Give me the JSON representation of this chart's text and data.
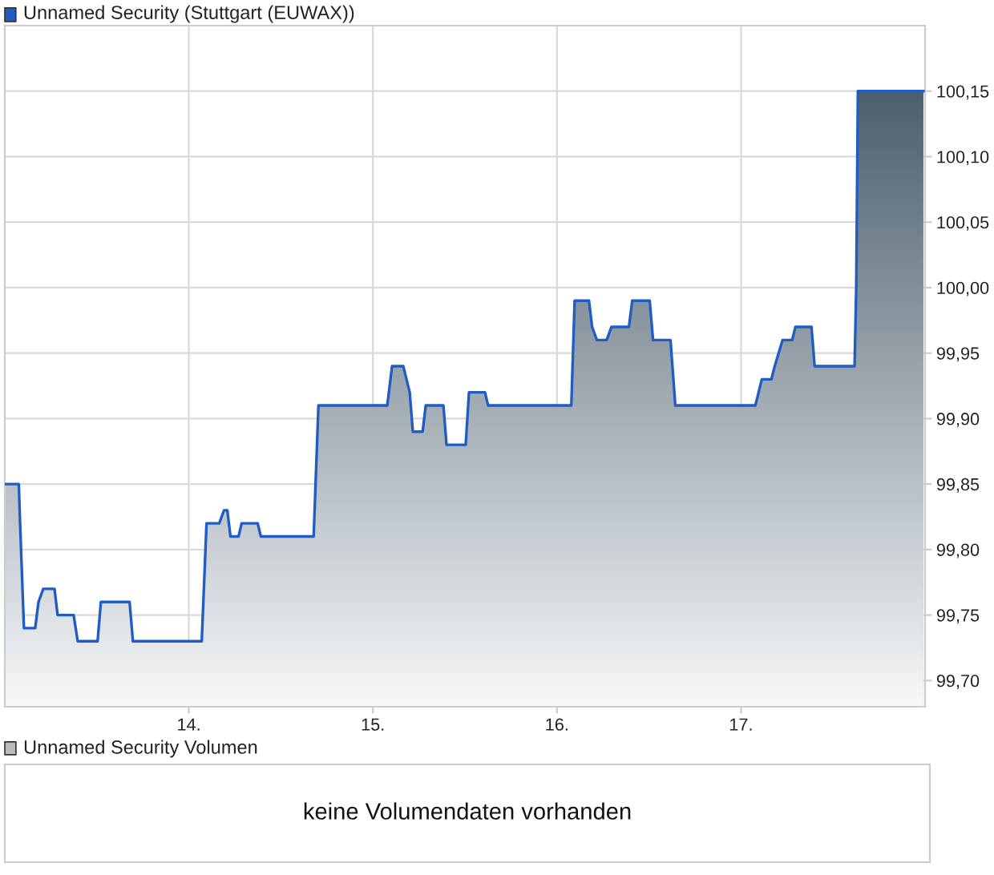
{
  "chart_data": [
    {
      "type": "area",
      "legend": "top left",
      "grid": true,
      "x": [
        13.0,
        13.076,
        13.083,
        13.104,
        13.165,
        13.183,
        13.209,
        13.27,
        13.287,
        13.374,
        13.396,
        13.504,
        13.522,
        13.678,
        13.696,
        14.07,
        14.096,
        14.165,
        14.191,
        14.209,
        14.226,
        14.27,
        14.287,
        14.374,
        14.391,
        14.678,
        14.704,
        15.078,
        15.104,
        15.165,
        15.2,
        15.217,
        15.27,
        15.287,
        15.383,
        15.4,
        15.504,
        15.522,
        15.609,
        15.626,
        16.078,
        16.096,
        16.174,
        16.191,
        16.217,
        16.27,
        16.296,
        16.391,
        16.409,
        16.504,
        16.522,
        16.617,
        16.643,
        17.078,
        17.113,
        17.165,
        17.183,
        17.226,
        17.278,
        17.296,
        17.383,
        17.4,
        17.617,
        17.626,
        17.635,
        17.991
      ],
      "series": [
        {
          "name": "Unnamed Security (Stuttgart (EUWAX))",
          "color": "#1f5cc4",
          "values": [
            99.85,
            99.85,
            99.82,
            99.74,
            99.74,
            99.76,
            99.77,
            99.77,
            99.75,
            99.75,
            99.73,
            99.73,
            99.76,
            99.76,
            99.73,
            99.73,
            99.82,
            99.82,
            99.83,
            99.83,
            99.81,
            99.81,
            99.82,
            99.82,
            99.81,
            99.81,
            99.91,
            99.91,
            99.94,
            99.94,
            99.92,
            99.89,
            99.89,
            99.91,
            99.91,
            99.88,
            99.88,
            99.92,
            99.92,
            99.91,
            99.91,
            99.99,
            99.99,
            99.97,
            99.96,
            99.96,
            99.97,
            99.97,
            99.99,
            99.99,
            99.96,
            99.96,
            99.91,
            99.91,
            99.93,
            99.93,
            99.94,
            99.96,
            99.96,
            99.97,
            99.97,
            99.94,
            99.94,
            100.0,
            100.15,
            100.15
          ]
        }
      ],
      "xlim": [
        13.0,
        18.0
      ],
      "xticks": [
        {
          "value": 14,
          "label": "14."
        },
        {
          "value": 15,
          "label": "15."
        },
        {
          "value": 16,
          "label": "16."
        },
        {
          "value": 17,
          "label": "17."
        }
      ],
      "ylim": [
        99.68,
        100.2
      ],
      "yticks": [
        {
          "value": 99.7,
          "label": "99,70"
        },
        {
          "value": 99.75,
          "label": "99,75"
        },
        {
          "value": 99.8,
          "label": "99,80"
        },
        {
          "value": 99.85,
          "label": "99,85"
        },
        {
          "value": 99.9,
          "label": "99,90"
        },
        {
          "value": 99.95,
          "label": "99,95"
        },
        {
          "value": 100.0,
          "label": "100,00"
        },
        {
          "value": 100.05,
          "label": "100,05"
        },
        {
          "value": 100.1,
          "label": "100,10"
        },
        {
          "value": 100.15,
          "label": "100,15"
        }
      ]
    },
    {
      "type": "other",
      "title": "Unnamed Security Volumen",
      "annotations": [
        "keine Volumendaten vorhanden"
      ]
    }
  ]
}
